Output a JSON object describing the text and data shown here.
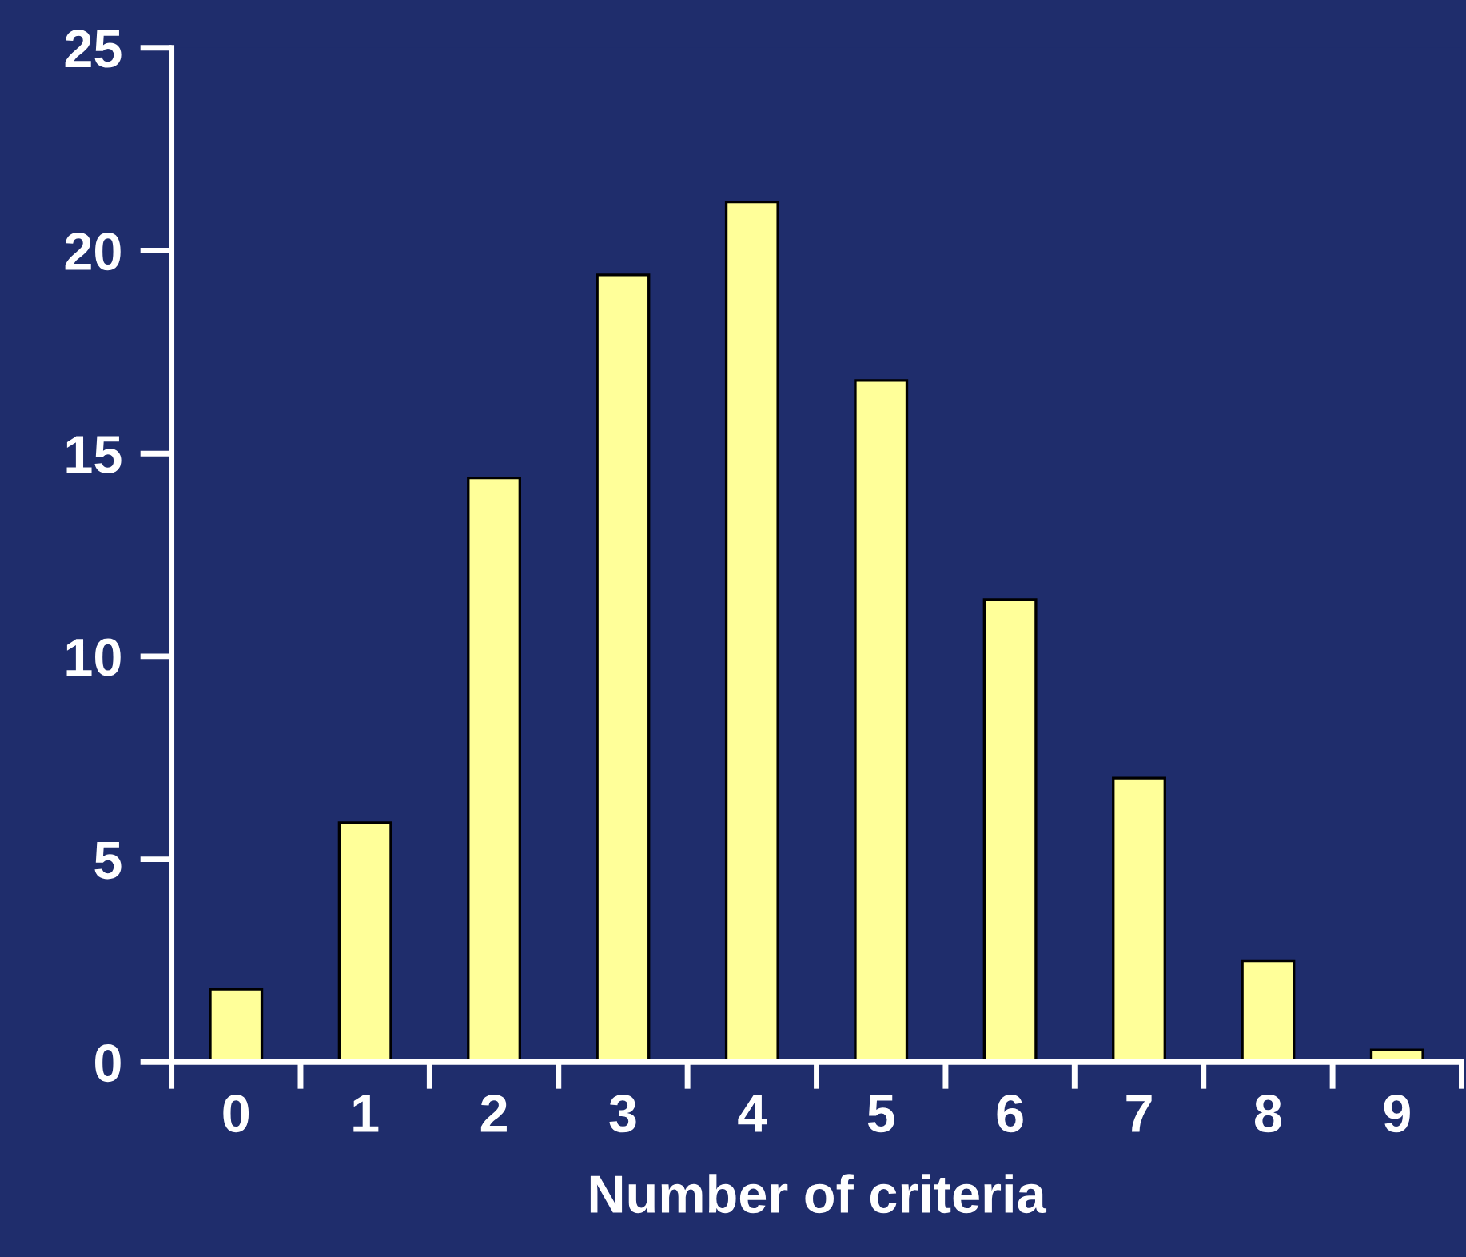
{
  "chart_data": {
    "type": "bar",
    "xlabel": "Number of criteria",
    "categories": [
      "0",
      "1",
      "2",
      "3",
      "4",
      "5",
      "6",
      "7",
      "8",
      "9"
    ],
    "values": [
      1.8,
      5.9,
      14.4,
      19.4,
      21.2,
      16.8,
      11.4,
      7.0,
      2.5,
      0.3
    ],
    "color": "#ffff99",
    "ylim": [
      0,
      25
    ],
    "yticks": [
      0,
      5,
      10,
      15,
      20,
      25
    ],
    "grid": false,
    "legend": false
  }
}
